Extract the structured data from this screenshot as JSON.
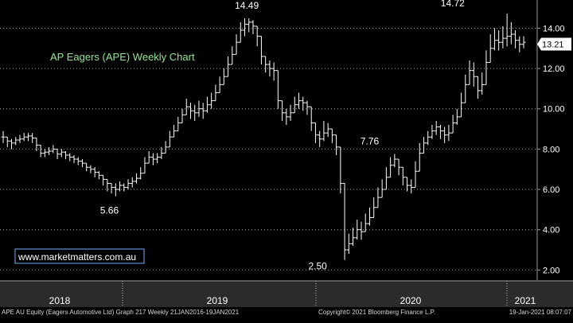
{
  "footer": {
    "left": "APE AU Equity (Eagers Automotive Ltd) Graph 217  Weekly 21JAN2016-19JAN2021",
    "mid": "Copyright© 2021 Bloomberg Finance L.P.",
    "right": "19-Jan-2021 08:07:07"
  },
  "colors": {
    "background": "#000000",
    "bars": "#ffffff",
    "grid": "#cfcfcf",
    "title": "#8fe88f",
    "watermark_box": "#6fb0ff",
    "axis_panel": "#2b2b2b",
    "last_price_box": "#ffffff"
  },
  "chart_data": {
    "type": "bar",
    "subtype": "ohlc-weekly",
    "title": "AP Eagers (APE) Weekly Chart",
    "watermark": "www.marketmatters.com.au",
    "xlabel": "",
    "ylabel": "",
    "ylim": [
      1.5,
      15.4
    ],
    "y_ticks": [
      "2.00",
      "4.00",
      "6.00",
      "8.00",
      "10.00",
      "12.00",
      "14.00"
    ],
    "y_tick_values": [
      2,
      4,
      6,
      8,
      10,
      12,
      14
    ],
    "grid": true,
    "x_labels": [
      "2018",
      "2019",
      "2020",
      "2021"
    ],
    "last_price": "13.21",
    "last_price_value": 13.21,
    "annotations": [
      {
        "text": "14.49",
        "x": 58.5,
        "y": 14.49,
        "pos": "above"
      },
      {
        "text": "5.66",
        "x": 25.5,
        "y": 5.66,
        "pos": "below"
      },
      {
        "text": "7.76",
        "x": 88,
        "y": 7.76,
        "pos": "above"
      },
      {
        "text": "2.50",
        "x": 78,
        "y": 2.5,
        "pos": "below-left"
      },
      {
        "text": "14.72",
        "x": 111,
        "y": 14.72,
        "pos": "above-left"
      }
    ],
    "series": [
      {
        "x_start": -0.2,
        "x_step": 1,
        "values": [
          8.6,
          8.4,
          8.3,
          8.45,
          8.5,
          8.6,
          8.65,
          8.55,
          8.2,
          7.8,
          7.85,
          7.9,
          8.0,
          7.75,
          7.85,
          7.7,
          7.6,
          7.5,
          7.4,
          7.3,
          7.1,
          7.0,
          6.85,
          6.7,
          6.5,
          6.3,
          6.1,
          6.0,
          6.2,
          6.1,
          6.3,
          6.4,
          6.55,
          6.8,
          7.3,
          7.6,
          7.5,
          7.6,
          7.8,
          8.1,
          8.6,
          8.9,
          9.3,
          9.7,
          10.1,
          9.9,
          9.8,
          10.0,
          9.9,
          10.2,
          10.4,
          10.8,
          11.2,
          11.6,
          12.2,
          12.7,
          13.3,
          13.9,
          14.2,
          14.3,
          14.1,
          13.6,
          12.6,
          12.2,
          12.0,
          11.9,
          10.4,
          9.8,
          9.6,
          9.8,
          10.2,
          10.4,
          10.3,
          10.1,
          9.3,
          8.7,
          8.5,
          8.8,
          9.0,
          8.7,
          8.1,
          6.3,
          3.0,
          3.3,
          3.6,
          4.0,
          3.9,
          4.3,
          4.6,
          5.1,
          5.6,
          6.0,
          6.6,
          7.2,
          7.5,
          7.1,
          6.6,
          6.2,
          6.1,
          6.9,
          7.8,
          8.3,
          8.6,
          8.9,
          9.1,
          8.9,
          8.7,
          8.8,
          9.3,
          9.6,
          10.3,
          11.2,
          11.9,
          11.6,
          10.9,
          11.2,
          12.3,
          13.0,
          13.4,
          13.3,
          13.5,
          13.6,
          13.7,
          13.4,
          13.2,
          13.3
        ],
        "highs": [
          8.9,
          8.6,
          8.5,
          8.6,
          8.7,
          8.8,
          8.8,
          8.8,
          8.4,
          8.0,
          8.0,
          8.1,
          8.2,
          8.0,
          8.0,
          7.9,
          7.8,
          7.7,
          7.6,
          7.5,
          7.3,
          7.2,
          7.1,
          6.9,
          6.7,
          6.5,
          6.3,
          6.3,
          6.4,
          6.3,
          6.5,
          6.6,
          6.8,
          7.1,
          7.6,
          7.9,
          7.8,
          7.8,
          8.1,
          8.4,
          8.9,
          9.2,
          9.6,
          10.0,
          10.5,
          10.3,
          10.2,
          10.4,
          10.3,
          10.6,
          10.8,
          11.2,
          11.6,
          12.0,
          12.6,
          13.1,
          13.7,
          14.3,
          14.49,
          14.49,
          14.4,
          13.9,
          13.0,
          12.6,
          12.4,
          12.3,
          10.8,
          10.2,
          10.0,
          10.2,
          10.6,
          10.8,
          10.6,
          10.4,
          9.6,
          9.0,
          8.9,
          9.4,
          9.3,
          9.0,
          8.4,
          6.6,
          3.4,
          3.8,
          4.1,
          4.5,
          4.4,
          4.8,
          5.1,
          5.6,
          6.1,
          6.5,
          7.1,
          7.6,
          7.76,
          7.5,
          7.0,
          6.6,
          6.5,
          7.4,
          8.3,
          8.6,
          8.9,
          9.2,
          9.4,
          9.2,
          9.1,
          9.2,
          9.7,
          10.0,
          10.8,
          11.7,
          12.4,
          12.3,
          11.6,
          11.8,
          12.9,
          13.7,
          14.0,
          13.9,
          14.1,
          14.72,
          14.3,
          13.9,
          13.6,
          13.6
        ],
        "lows": [
          8.3,
          8.1,
          8.0,
          8.2,
          8.3,
          8.4,
          8.4,
          8.3,
          7.9,
          7.6,
          7.6,
          7.7,
          7.8,
          7.5,
          7.6,
          7.5,
          7.4,
          7.3,
          7.2,
          7.1,
          6.9,
          6.8,
          6.6,
          6.5,
          6.2,
          5.9,
          5.8,
          5.66,
          5.9,
          5.9,
          6.0,
          6.1,
          6.3,
          6.5,
          7.0,
          7.3,
          7.2,
          7.3,
          7.5,
          7.8,
          8.3,
          8.6,
          9.0,
          9.4,
          9.7,
          9.5,
          9.4,
          9.6,
          9.5,
          9.8,
          10.0,
          10.4,
          10.8,
          11.2,
          11.8,
          12.3,
          12.9,
          13.4,
          13.6,
          13.8,
          13.7,
          13.1,
          12.2,
          11.8,
          11.6,
          11.4,
          10.0,
          9.4,
          9.2,
          9.4,
          9.8,
          10.0,
          9.9,
          9.7,
          8.9,
          8.3,
          8.1,
          8.4,
          8.6,
          8.3,
          7.7,
          5.8,
          2.5,
          2.8,
          3.2,
          3.5,
          3.5,
          3.9,
          4.2,
          4.7,
          5.2,
          5.6,
          6.2,
          6.8,
          7.1,
          6.7,
          6.2,
          5.9,
          5.8,
          6.5,
          7.3,
          7.9,
          8.2,
          8.5,
          8.7,
          8.5,
          8.3,
          8.4,
          8.9,
          9.2,
          9.8,
          10.7,
          11.4,
          11.1,
          10.5,
          10.7,
          11.8,
          12.5,
          12.9,
          12.9,
          13.0,
          13.1,
          13.2,
          13.0,
          12.8,
          13.0
        ]
      }
    ]
  }
}
